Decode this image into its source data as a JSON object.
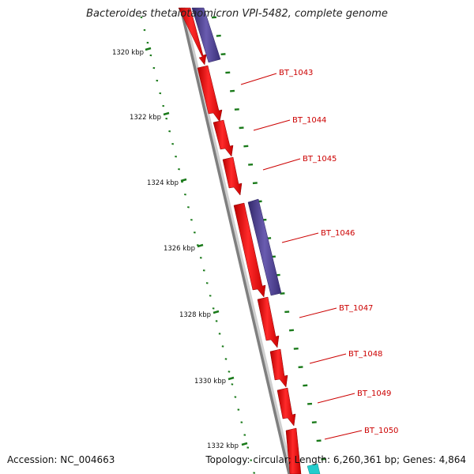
{
  "title": "Bacteroides thetaiotaomicron VPI-5482, complete genome",
  "accession_text": "Accession: NC_004663",
  "topology_text": "Topology: circular; Length: 6,260,361 bp; Genes: 4,864",
  "colors": {
    "forward_gene": "#ff1a1a",
    "reverse_gene": "#4a3d8f",
    "other_feature": "#22cccc",
    "backbone": "#8a8a8a",
    "tick": "#1a7a1a",
    "gene_label": "#cc0000",
    "scale_label": "#111111"
  },
  "scale_labels": [
    "1320 kbp",
    "1322 kbp",
    "1324 kbp",
    "1326 kbp",
    "1328 kbp",
    "1330 kbp",
    "1332 kbp"
  ],
  "gene_labels": [
    "BT_1043",
    "BT_1044",
    "BT_1045",
    "BT_1046",
    "BT_1047",
    "BT_1048",
    "BT_1049",
    "BT_1050"
  ]
}
